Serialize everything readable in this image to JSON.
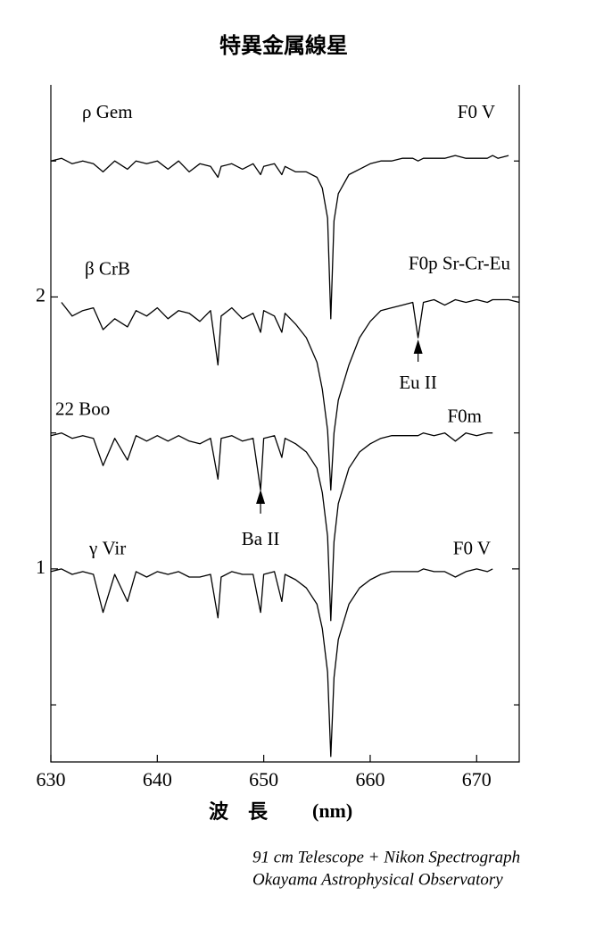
{
  "chart_data": {
    "type": "line",
    "title": "特異金属線星",
    "x_label": "波　長",
    "x_unit": "(nm)",
    "footnote": [
      "91 cm Telescope + Nikon Spectrograph",
      "Okayama Astrophysical Observatory"
    ],
    "xlim": [
      630,
      674
    ],
    "xticks": [
      630,
      640,
      650,
      660,
      670
    ],
    "ylim": [
      0.29,
      2.78
    ],
    "yticks": [
      1,
      2
    ],
    "yminor": [
      0.5,
      1.5,
      2.5
    ],
    "x": [
      630,
      631,
      632,
      633,
      634,
      634.9,
      636,
      637.2,
      638,
      639,
      640,
      641,
      642,
      643,
      644,
      645,
      645.7,
      646,
      647,
      648,
      649,
      649.7,
      650,
      651,
      651.7,
      652,
      653,
      654,
      655,
      655.5,
      656,
      656.3,
      656.6,
      657,
      658,
      659,
      660,
      661,
      662,
      663,
      664,
      664.5,
      665,
      666,
      667,
      668,
      669,
      670,
      671,
      671.5,
      672,
      673,
      674
    ],
    "series": [
      {
        "name": "ρ  Gem",
        "spectral_type": "F0 V",
        "color": "#000000",
        "values": [
          2.5,
          2.51,
          2.49,
          2.5,
          2.49,
          2.46,
          2.5,
          2.47,
          2.5,
          2.49,
          2.5,
          2.47,
          2.5,
          2.46,
          2.49,
          2.48,
          2.44,
          2.48,
          2.49,
          2.47,
          2.49,
          2.45,
          2.48,
          2.49,
          2.45,
          2.48,
          2.46,
          2.46,
          2.44,
          2.4,
          2.29,
          1.92,
          2.28,
          2.38,
          2.45,
          2.47,
          2.49,
          2.5,
          2.5,
          2.51,
          2.51,
          2.5,
          2.51,
          2.51,
          2.51,
          2.52,
          2.51,
          2.51,
          2.51,
          2.52,
          2.51,
          2.52,
          null
        ]
      },
      {
        "name": "β  CrB",
        "spectral_type": "F0p Sr-Cr-Eu",
        "color": "#000000",
        "values": [
          null,
          1.98,
          1.93,
          1.95,
          1.96,
          1.88,
          1.92,
          1.89,
          1.95,
          1.93,
          1.96,
          1.92,
          1.95,
          1.94,
          1.91,
          1.95,
          1.75,
          1.93,
          1.96,
          1.92,
          1.94,
          1.87,
          1.95,
          1.93,
          1.87,
          1.94,
          1.9,
          1.85,
          1.76,
          1.66,
          1.51,
          1.29,
          1.5,
          1.62,
          1.75,
          1.85,
          1.91,
          1.95,
          1.96,
          1.97,
          1.98,
          1.85,
          1.98,
          1.99,
          1.97,
          1.99,
          1.98,
          1.99,
          1.98,
          1.99,
          1.99,
          1.99,
          1.98
        ]
      },
      {
        "name": "22 Boo",
        "spectral_type": "F0m",
        "color": "#000000",
        "values": [
          1.49,
          1.5,
          1.48,
          1.49,
          1.48,
          1.38,
          1.48,
          1.4,
          1.49,
          1.47,
          1.49,
          1.47,
          1.49,
          1.47,
          1.46,
          1.48,
          1.33,
          1.48,
          1.49,
          1.47,
          1.48,
          1.29,
          1.48,
          1.49,
          1.41,
          1.48,
          1.46,
          1.43,
          1.37,
          1.28,
          1.12,
          0.81,
          1.1,
          1.24,
          1.37,
          1.43,
          1.46,
          1.48,
          1.49,
          1.49,
          1.49,
          1.49,
          1.5,
          1.49,
          1.5,
          1.47,
          1.5,
          1.49,
          1.5,
          1.5,
          null,
          null,
          null
        ]
      },
      {
        "name": "γ  Vir",
        "spectral_type": "F0 V",
        "color": "#000000",
        "values": [
          0.99,
          1.0,
          0.98,
          0.99,
          0.98,
          0.84,
          0.98,
          0.88,
          0.99,
          0.97,
          0.99,
          0.98,
          0.99,
          0.97,
          0.97,
          0.98,
          0.82,
          0.97,
          0.99,
          0.98,
          0.98,
          0.84,
          0.98,
          0.99,
          0.88,
          0.98,
          0.96,
          0.93,
          0.87,
          0.78,
          0.62,
          0.31,
          0.6,
          0.74,
          0.87,
          0.93,
          0.96,
          0.98,
          0.99,
          0.99,
          0.99,
          0.99,
          1.0,
          0.99,
          0.99,
          0.97,
          0.99,
          1.0,
          0.99,
          1.0,
          null,
          null,
          null
        ]
      }
    ],
    "annotations": [
      {
        "text": "Eu II",
        "x": 664.5
      },
      {
        "text": "Ba II",
        "x": 649.7
      }
    ]
  }
}
